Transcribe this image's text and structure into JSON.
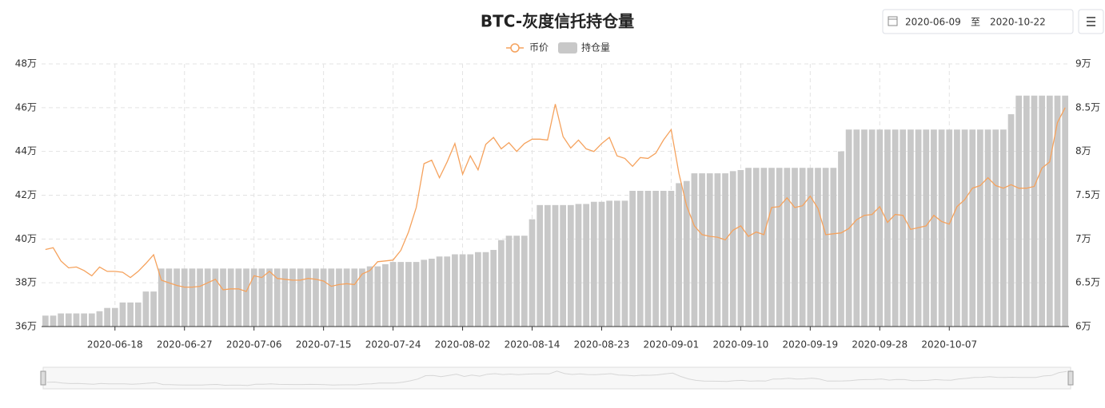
{
  "chart_data": {
    "type": "combo",
    "title": "BTC-灰度信托持仓量",
    "categories": [
      null,
      null,
      null,
      null,
      null,
      null,
      null,
      null,
      null,
      "2020-06-18",
      null,
      null,
      null,
      null,
      null,
      null,
      null,
      null,
      "2020-06-27",
      null,
      null,
      null,
      null,
      null,
      null,
      null,
      null,
      "2020-07-06",
      null,
      null,
      null,
      null,
      null,
      null,
      null,
      null,
      "2020-07-15",
      null,
      null,
      null,
      null,
      null,
      null,
      null,
      null,
      "2020-07-24",
      null,
      null,
      null,
      null,
      null,
      null,
      null,
      null,
      "2020-08-02",
      null,
      null,
      null,
      null,
      null,
      null,
      null,
      null,
      "2020-08-14",
      null,
      null,
      null,
      null,
      null,
      null,
      null,
      null,
      "2020-08-23",
      null,
      null,
      null,
      null,
      null,
      null,
      null,
      null,
      "2020-09-01",
      null,
      null,
      null,
      null,
      null,
      null,
      null,
      null,
      "2020-09-10",
      null,
      null,
      null,
      null,
      null,
      null,
      null,
      null,
      "2020-09-19",
      null,
      null,
      null,
      null,
      null,
      null,
      null,
      null,
      "2020-09-28",
      null,
      null,
      null,
      null,
      null,
      null,
      null,
      null,
      "2020-10-07",
      null,
      null,
      null,
      null,
      null,
      null,
      null,
      null,
      null,
      null,
      null,
      null,
      null,
      null,
      null
    ],
    "series": [
      {
        "name": "币价",
        "type": "line",
        "axis": "y2",
        "color": "#f5a25d",
        "values": [
          6.88,
          6.9,
          6.75,
          6.67,
          6.68,
          6.64,
          6.58,
          6.68,
          6.63,
          6.63,
          6.62,
          6.56,
          6.63,
          6.72,
          6.82,
          6.53,
          6.5,
          6.47,
          6.45,
          6.45,
          6.46,
          6.5,
          6.54,
          6.42,
          6.43,
          6.43,
          6.4,
          6.58,
          6.56,
          6.63,
          6.55,
          6.54,
          6.53,
          6.53,
          6.55,
          6.54,
          6.52,
          6.46,
          6.48,
          6.49,
          6.48,
          6.6,
          6.64,
          6.74,
          6.75,
          6.76,
          6.87,
          7.08,
          7.36,
          7.86,
          7.9,
          7.7,
          7.88,
          8.09,
          7.74,
          7.95,
          7.79,
          8.08,
          8.16,
          8.03,
          8.1,
          8.0,
          8.09,
          8.14,
          8.14,
          8.13,
          8.54,
          8.17,
          8.04,
          8.13,
          8.03,
          8.0,
          8.09,
          8.16,
          7.95,
          7.92,
          7.83,
          7.93,
          7.92,
          7.98,
          8.13,
          8.25,
          7.75,
          7.38,
          7.15,
          7.05,
          7.03,
          7.02,
          6.99,
          7.1,
          7.15,
          7.03,
          7.08,
          7.05,
          7.36,
          7.37,
          7.47,
          7.36,
          7.38,
          7.49,
          7.35,
          7.05,
          7.06,
          7.07,
          7.12,
          7.22,
          7.27,
          7.28,
          7.37,
          7.19,
          7.28,
          7.27,
          7.11,
          7.13,
          7.15,
          7.27,
          7.2,
          7.17,
          7.37,
          7.45,
          7.58,
          7.61,
          7.7,
          7.61,
          7.58,
          7.62,
          7.58,
          7.58,
          7.6,
          7.81,
          7.88,
          8.33,
          8.5
        ]
      },
      {
        "name": "持仓量",
        "type": "bar",
        "axis": "y",
        "color": "#c8c8c8",
        "values": [
          36.5,
          36.5,
          36.6,
          36.6,
          36.6,
          36.6,
          36.6,
          36.7,
          36.85,
          36.85,
          37.1,
          37.1,
          37.1,
          37.6,
          37.6,
          38.65,
          38.65,
          38.65,
          38.65,
          38.65,
          38.65,
          38.65,
          38.65,
          38.65,
          38.65,
          38.65,
          38.65,
          38.65,
          38.65,
          38.65,
          38.65,
          38.65,
          38.65,
          38.65,
          38.65,
          38.65,
          38.65,
          38.65,
          38.65,
          38.65,
          38.65,
          38.65,
          38.75,
          38.75,
          38.85,
          38.95,
          38.95,
          38.95,
          38.95,
          39.05,
          39.1,
          39.2,
          39.2,
          39.3,
          39.3,
          39.3,
          39.4,
          39.4,
          39.5,
          39.95,
          40.15,
          40.15,
          40.15,
          40.9,
          41.55,
          41.55,
          41.55,
          41.55,
          41.55,
          41.6,
          41.6,
          41.7,
          41.7,
          41.75,
          41.75,
          41.75,
          42.2,
          42.2,
          42.2,
          42.2,
          42.2,
          42.2,
          42.55,
          42.65,
          43.0,
          43.0,
          43.0,
          43.0,
          43.0,
          43.1,
          43.15,
          43.25,
          43.25,
          43.25,
          43.25,
          43.25,
          43.25,
          43.25,
          43.25,
          43.25,
          43.25,
          43.25,
          43.25,
          44.0,
          45.0,
          45.0,
          45.0,
          45.0,
          45.0,
          45.0,
          45.0,
          45.0,
          45.0,
          45.0,
          45.0,
          45.0,
          45.0,
          45.0,
          45.0,
          45.0,
          45.0,
          45.0,
          45.0,
          45.0,
          45.0,
          45.7,
          46.55,
          46.55,
          46.55,
          46.55,
          46.55,
          46.55,
          46.55
        ]
      }
    ],
    "ylim": [
      36,
      48
    ],
    "yticks": [
      {
        "value": 36,
        "label": "36万"
      },
      {
        "value": 38,
        "label": "38万"
      },
      {
        "value": 40,
        "label": "40万"
      },
      {
        "value": 42,
        "label": "42万"
      },
      {
        "value": 44,
        "label": "44万"
      },
      {
        "value": 46,
        "label": "46万"
      },
      {
        "value": 48,
        "label": "48万"
      }
    ],
    "y2lim": [
      6,
      9
    ],
    "y2ticks": [
      {
        "value": 6,
        "label": "6万"
      },
      {
        "value": 6.5,
        "label": "6.5万"
      },
      {
        "value": 7,
        "label": "7万"
      },
      {
        "value": 7.5,
        "label": "7.5万"
      },
      {
        "value": 8,
        "label": "8万"
      },
      {
        "value": 8.5,
        "label": "8.5万"
      },
      {
        "value": 9,
        "label": "9万"
      }
    ],
    "grid": true,
    "legend": "top"
  },
  "controls": {
    "start_date": "2020-06-09",
    "separator": "至",
    "end_date": "2020-10-22"
  }
}
